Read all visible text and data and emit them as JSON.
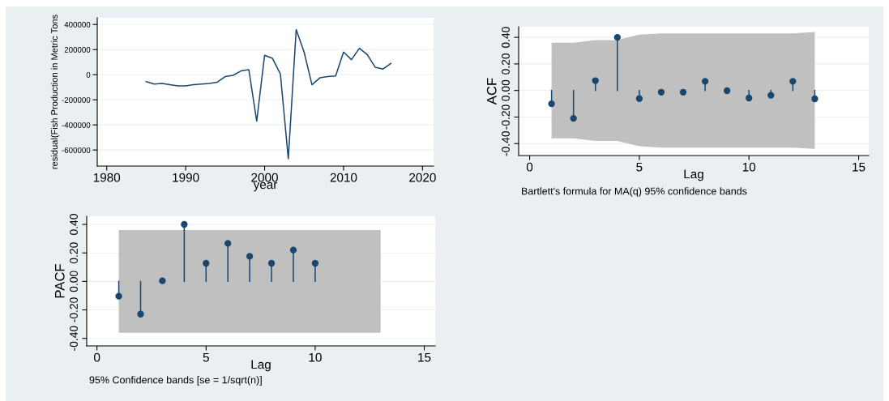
{
  "chart_data": [
    {
      "type": "line",
      "xlabel": "year",
      "ylabel": "residual(Fish Production in Metric Tons",
      "grid": "y",
      "marker": "none",
      "x": [
        1985,
        1986,
        1987,
        1988,
        1989,
        1990,
        1991,
        1992,
        1993,
        1994,
        1995,
        1996,
        1997,
        1998,
        1999,
        2000,
        2001,
        2002,
        2003,
        2004,
        2005,
        2006,
        2007,
        2008,
        2009,
        2010,
        2011,
        2012,
        2013,
        2014,
        2015,
        2016
      ],
      "series": [
        {
          "color": "#1a476f",
          "values": [
            -55000,
            -75000,
            -70000,
            -80000,
            -89000,
            -89000,
            -80000,
            -75000,
            -70000,
            -60000,
            -15000,
            -5000,
            30000,
            40000,
            -370000,
            155000,
            130000,
            5000,
            -670000,
            360000,
            180000,
            -80000,
            -25000,
            -15000,
            -10000,
            180000,
            120000,
            210000,
            160000,
            60000,
            45000,
            90000
          ]
        }
      ],
      "xlim": [
        1978.8,
        2021.4
      ],
      "xticks": [
        1980,
        1990,
        2000,
        2010,
        2020
      ],
      "ylim": [
        -728000,
        453000
      ],
      "yticks": [
        -600000,
        -400000,
        -200000,
        0,
        200000,
        400000
      ]
    },
    {
      "type": "lollipop",
      "xlabel": "Lag",
      "ylabel": "ACF",
      "grid": "y",
      "marker": "circle",
      "annotations": [
        "Bartlett's formula for MA(q) 95% confidence bands"
      ],
      "x": [
        1,
        2,
        3,
        4,
        5,
        6,
        7,
        8,
        9,
        10,
        11,
        12,
        13
      ],
      "series": [
        {
          "color": "#1a476f",
          "values": [
            -0.1,
            -0.21,
            0.074,
            0.4,
            -0.061,
            -0.013,
            -0.013,
            0.069,
            -0.002,
            -0.057,
            -0.036,
            0.069,
            -0.063
          ],
          "upper": [
            0.36,
            0.36,
            0.38,
            0.38,
            0.42,
            0.43,
            0.43,
            0.43,
            0.43,
            0.43,
            0.43,
            0.43,
            0.44
          ],
          "lower": [
            -0.36,
            -0.36,
            -0.38,
            -0.38,
            -0.42,
            -0.43,
            -0.43,
            -0.43,
            -0.43,
            -0.43,
            -0.43,
            -0.43,
            -0.44
          ]
        }
      ],
      "xlim": [
        -0.5,
        15.46
      ],
      "xticks": [
        0,
        5,
        10,
        15
      ],
      "ylim": [
        -0.49,
        0.48
      ],
      "yticks": [
        {
          "value": -0.4,
          "label": "-0.40"
        },
        {
          "value": -0.2,
          "label": "-0.20"
        },
        {
          "value": 0,
          "label": "0.00"
        },
        {
          "value": 0.2,
          "label": "0.20"
        },
        {
          "value": 0.4,
          "label": "0.40"
        }
      ]
    },
    {
      "type": "lollipop",
      "xlabel": "Lag",
      "ylabel": "PACF",
      "grid": "y",
      "marker": "circle",
      "annotations": [
        "95% Confidence bands [se = 1/sqrt(n)]"
      ],
      "x": [
        1,
        2,
        3,
        4,
        5,
        6,
        7,
        8,
        9,
        10,
        11,
        12,
        13
      ],
      "series": [
        {
          "color": "#1a476f",
          "values": [
            -0.104,
            -0.23,
            0.004,
            0.4,
            0.127,
            0.267,
            0.176,
            0.127,
            0.22,
            0.127,
            null,
            null,
            null
          ],
          "upper": [
            0.36,
            0.36,
            0.36,
            0.36,
            0.36,
            0.36,
            0.36,
            0.36,
            0.36,
            0.36,
            0.36,
            0.36,
            0.36
          ],
          "lower": [
            -0.36,
            -0.36,
            -0.36,
            -0.36,
            -0.36,
            -0.36,
            -0.36,
            -0.36,
            -0.36,
            -0.36,
            -0.36,
            -0.36,
            -0.36
          ]
        }
      ],
      "xlim": [
        -0.47,
        15.5
      ],
      "xticks": [
        0,
        5,
        10,
        15
      ],
      "ylim": [
        -0.453,
        0.457
      ],
      "yticks": [
        {
          "value": -0.4,
          "label": "-0.40"
        },
        {
          "value": -0.2,
          "label": "-0.20"
        },
        {
          "value": 0,
          "label": "0.00"
        },
        {
          "value": 0.2,
          "label": "0.20"
        },
        {
          "value": 0.4,
          "label": "0.40"
        }
      ]
    }
  ]
}
